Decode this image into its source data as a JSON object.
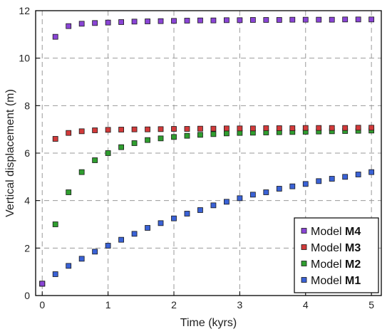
{
  "chart_data": {
    "type": "scatter",
    "xlabel": "Time (kyrs)",
    "ylabel": "Vertical displacement (m)",
    "xlim": [
      -0.1,
      5.15
    ],
    "ylim": [
      0,
      12
    ],
    "xticks": [
      "0",
      "1",
      "2",
      "3",
      "4",
      "5"
    ],
    "yticks": [
      "0",
      "2",
      "4",
      "6",
      "8",
      "10",
      "12"
    ],
    "grid": true,
    "legend_position": "bottom-right",
    "x": [
      0,
      0.2,
      0.4,
      0.6,
      0.8,
      1.0,
      1.2,
      1.4,
      1.6,
      1.8,
      2.0,
      2.2,
      2.4,
      2.6,
      2.8,
      3.0,
      3.2,
      3.4,
      3.6,
      3.8,
      4.0,
      4.2,
      4.4,
      4.6,
      4.8,
      5.0
    ],
    "series": [
      {
        "legend_prefix": "Model ",
        "legend_bold": "M1",
        "color": "#3a62d6",
        "values": [
          0.5,
          0.9,
          1.25,
          1.55,
          1.85,
          2.1,
          2.35,
          2.6,
          2.85,
          3.05,
          3.25,
          3.45,
          3.6,
          3.8,
          3.95,
          4.1,
          4.25,
          4.35,
          4.5,
          4.6,
          4.7,
          4.82,
          4.92,
          5.0,
          5.1,
          5.2
        ]
      },
      {
        "legend_prefix": "Model ",
        "legend_bold": "M2",
        "color": "#2f9e2f",
        "values": [
          0.5,
          3.0,
          4.35,
          5.2,
          5.7,
          6.0,
          6.25,
          6.42,
          6.55,
          6.62,
          6.68,
          6.73,
          6.77,
          6.8,
          6.83,
          6.85,
          6.86,
          6.87,
          6.88,
          6.89,
          6.9,
          6.91,
          6.92,
          6.93,
          6.94,
          6.95
        ]
      },
      {
        "legend_prefix": "Model ",
        "legend_bold": "M3",
        "color": "#d23a3a",
        "values": [
          0.5,
          6.6,
          6.85,
          6.92,
          6.96,
          6.98,
          6.99,
          7.0,
          7.0,
          7.01,
          7.02,
          7.02,
          7.03,
          7.03,
          7.04,
          7.04,
          7.04,
          7.05,
          7.05,
          7.05,
          7.06,
          7.06,
          7.06,
          7.06,
          7.07,
          7.07
        ]
      },
      {
        "legend_prefix": "Model ",
        "legend_bold": "M4",
        "color": "#8a45d6",
        "values": [
          0.5,
          10.9,
          11.35,
          11.45,
          11.48,
          11.5,
          11.52,
          11.54,
          11.55,
          11.56,
          11.57,
          11.58,
          11.59,
          11.59,
          11.6,
          11.6,
          11.61,
          11.61,
          11.61,
          11.62,
          11.62,
          11.62,
          11.62,
          11.63,
          11.63,
          11.63
        ]
      }
    ]
  }
}
